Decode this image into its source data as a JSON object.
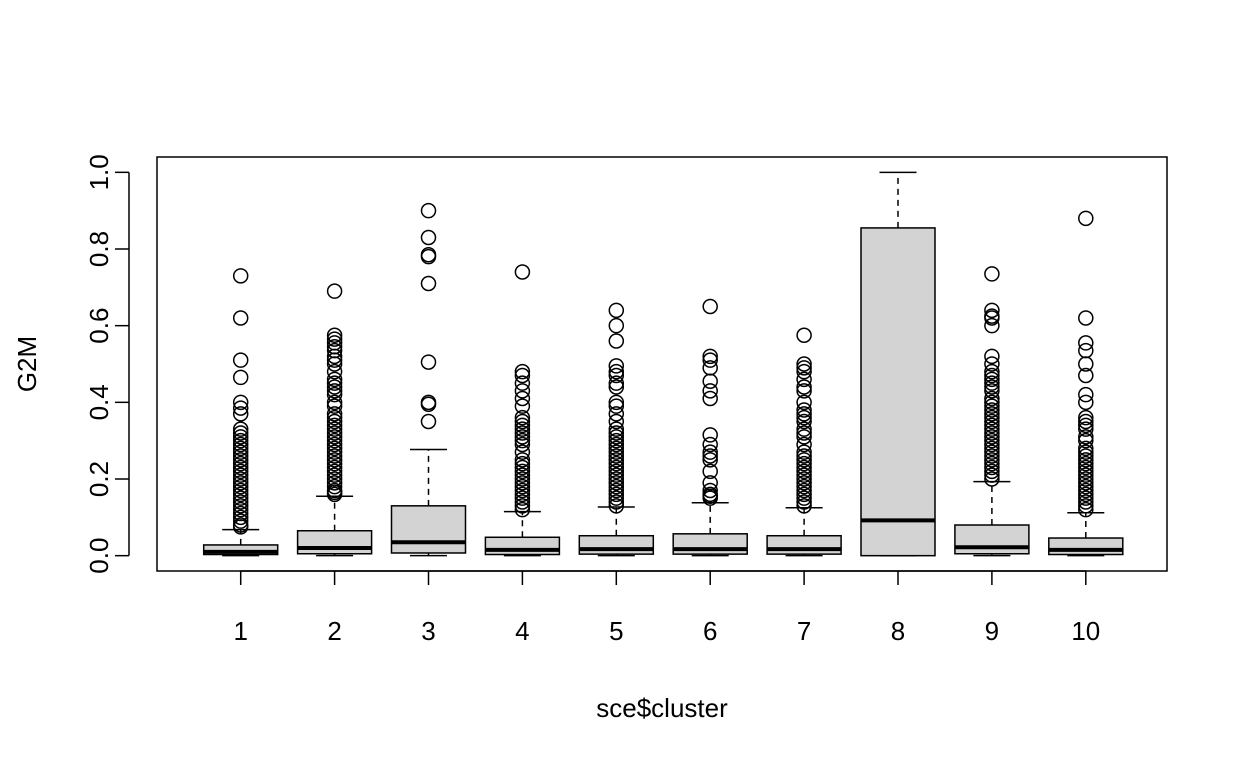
{
  "chart_data": {
    "type": "boxplot",
    "xlabel": "sce$cluster",
    "ylabel": "G2M",
    "ylim": [
      -0.04,
      1.04
    ],
    "yticks": [
      "0.0",
      "0.2",
      "0.4",
      "0.6",
      "0.8",
      "1.0"
    ],
    "ytick_values": [
      0,
      0.2,
      0.4,
      0.6,
      0.8,
      1.0
    ],
    "categories": [
      "1",
      "2",
      "3",
      "4",
      "5",
      "6",
      "7",
      "8",
      "9",
      "10"
    ],
    "box_fill": "#d3d3d3",
    "boxes": [
      {
        "label": "1",
        "min": 0.0,
        "q1": 0.003,
        "median": 0.01,
        "q3": 0.028,
        "max": 0.068,
        "outliers": [
          0.73,
          0.62,
          0.51,
          0.465,
          0.4,
          0.385,
          0.37,
          0.33,
          0.32,
          0.31,
          0.3,
          0.29,
          0.28,
          0.27,
          0.26,
          0.25,
          0.24,
          0.23,
          0.22,
          0.21,
          0.2,
          0.19,
          0.18,
          0.17,
          0.16,
          0.15,
          0.14,
          0.13,
          0.12,
          0.11,
          0.1,
          0.09,
          0.08,
          0.075
        ]
      },
      {
        "label": "2",
        "min": 0.0,
        "q1": 0.005,
        "median": 0.02,
        "q3": 0.065,
        "max": 0.155,
        "outliers": [
          0.69,
          0.575,
          0.565,
          0.555,
          0.545,
          0.535,
          0.52,
          0.51,
          0.5,
          0.48,
          0.46,
          0.45,
          0.44,
          0.43,
          0.42,
          0.4,
          0.39,
          0.37,
          0.36,
          0.35,
          0.34,
          0.33,
          0.32,
          0.31,
          0.3,
          0.29,
          0.28,
          0.27,
          0.26,
          0.25,
          0.24,
          0.23,
          0.22,
          0.21,
          0.2,
          0.19,
          0.18,
          0.17,
          0.165,
          0.16
        ]
      },
      {
        "label": "3",
        "min": 0.0,
        "q1": 0.007,
        "median": 0.035,
        "q3": 0.13,
        "max": 0.277,
        "outliers": [
          0.9,
          0.83,
          0.785,
          0.78,
          0.71,
          0.505,
          0.4,
          0.395,
          0.35
        ]
      },
      {
        "label": "4",
        "min": 0.0,
        "q1": 0.003,
        "median": 0.015,
        "q3": 0.048,
        "max": 0.115,
        "outliers": [
          0.74,
          0.48,
          0.47,
          0.45,
          0.43,
          0.41,
          0.39,
          0.36,
          0.35,
          0.34,
          0.33,
          0.32,
          0.31,
          0.3,
          0.29,
          0.27,
          0.25,
          0.24,
          0.23,
          0.22,
          0.21,
          0.2,
          0.19,
          0.18,
          0.17,
          0.16,
          0.15,
          0.14,
          0.13,
          0.12
        ]
      },
      {
        "label": "5",
        "min": 0.0,
        "q1": 0.004,
        "median": 0.017,
        "q3": 0.052,
        "max": 0.127,
        "outliers": [
          0.64,
          0.6,
          0.56,
          0.495,
          0.48,
          0.47,
          0.45,
          0.44,
          0.4,
          0.39,
          0.37,
          0.35,
          0.33,
          0.32,
          0.31,
          0.3,
          0.29,
          0.28,
          0.27,
          0.26,
          0.25,
          0.24,
          0.23,
          0.22,
          0.21,
          0.2,
          0.19,
          0.18,
          0.17,
          0.16,
          0.15,
          0.14,
          0.13
        ]
      },
      {
        "label": "6",
        "min": 0.0,
        "q1": 0.004,
        "median": 0.017,
        "q3": 0.057,
        "max": 0.138,
        "outliers": [
          0.65,
          0.52,
          0.51,
          0.49,
          0.455,
          0.43,
          0.41,
          0.315,
          0.29,
          0.27,
          0.26,
          0.25,
          0.22,
          0.19,
          0.17,
          0.16,
          0.155,
          0.15
        ]
      },
      {
        "label": "7",
        "min": 0.0,
        "q1": 0.004,
        "median": 0.017,
        "q3": 0.052,
        "max": 0.125,
        "outliers": [
          0.575,
          0.5,
          0.49,
          0.48,
          0.46,
          0.44,
          0.43,
          0.4,
          0.38,
          0.37,
          0.36,
          0.35,
          0.33,
          0.32,
          0.31,
          0.29,
          0.27,
          0.26,
          0.25,
          0.24,
          0.23,
          0.22,
          0.21,
          0.2,
          0.19,
          0.18,
          0.17,
          0.16,
          0.15,
          0.14,
          0.13
        ]
      },
      {
        "label": "8",
        "min": 0.0,
        "q1": 0.0,
        "median": 0.092,
        "q3": 0.855,
        "max": 1.0,
        "outliers": []
      },
      {
        "label": "9",
        "min": 0.0,
        "q1": 0.005,
        "median": 0.022,
        "q3": 0.08,
        "max": 0.193,
        "outliers": [
          0.735,
          0.64,
          0.625,
          0.62,
          0.6,
          0.52,
          0.5,
          0.48,
          0.47,
          0.46,
          0.45,
          0.44,
          0.43,
          0.41,
          0.4,
          0.39,
          0.38,
          0.37,
          0.36,
          0.35,
          0.34,
          0.33,
          0.32,
          0.31,
          0.3,
          0.29,
          0.28,
          0.27,
          0.26,
          0.25,
          0.24,
          0.23,
          0.22,
          0.21,
          0.2
        ]
      },
      {
        "label": "10",
        "min": 0.0,
        "q1": 0.003,
        "median": 0.015,
        "q3": 0.046,
        "max": 0.112,
        "outliers": [
          0.88,
          0.62,
          0.555,
          0.535,
          0.5,
          0.47,
          0.42,
          0.4,
          0.36,
          0.35,
          0.34,
          0.33,
          0.31,
          0.3,
          0.28,
          0.27,
          0.26,
          0.25,
          0.24,
          0.23,
          0.22,
          0.21,
          0.2,
          0.19,
          0.18,
          0.17,
          0.16,
          0.15,
          0.14,
          0.13,
          0.12
        ]
      }
    ]
  }
}
